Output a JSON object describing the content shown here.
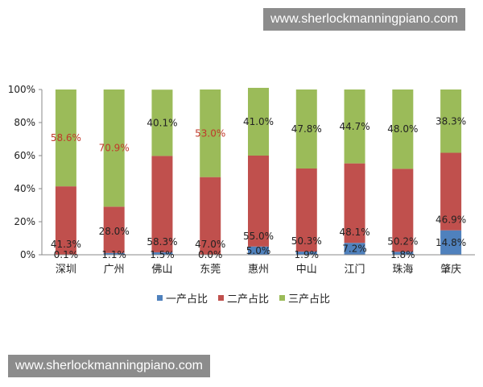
{
  "watermarks": {
    "top": "www.sherlockmanningpiano.com",
    "bottom": "www.sherlockmanningpiano.com"
  },
  "chart_data": {
    "type": "bar",
    "stacked": true,
    "categories": [
      "深圳",
      "广州",
      "佛山",
      "东莞",
      "惠州",
      "中山",
      "江门",
      "珠海",
      "肇庆"
    ],
    "series": [
      {
        "name": "一产占比",
        "color": "#4f81bd",
        "values": [
          0.1,
          1.1,
          1.5,
          0.0,
          5.0,
          1.9,
          7.2,
          1.8,
          14.8
        ],
        "labels": [
          "0.1%",
          "1.1%",
          "1.5%",
          "0.0%",
          "5.0%",
          "1.9%",
          "7.2%",
          "1.8%",
          "14.8%"
        ]
      },
      {
        "name": "二产占比",
        "color": "#c0504d",
        "values": [
          41.3,
          28.0,
          58.3,
          47.0,
          55.0,
          50.3,
          48.1,
          50.2,
          46.9
        ],
        "labels": [
          "41.3%",
          "28.0%",
          "58.3%",
          "47.0%",
          "55.0%",
          "50.3%",
          "48.1%",
          "50.2%",
          "46.9%"
        ]
      },
      {
        "name": "三产占比",
        "color": "#9bbb59",
        "values": [
          58.6,
          70.9,
          40.1,
          53.0,
          41.0,
          47.8,
          44.7,
          48.0,
          38.3
        ],
        "labels": [
          "58.6%",
          "70.9%",
          "40.1%",
          "53.0%",
          "41.0%",
          "47.8%",
          "44.7%",
          "48.0%",
          "38.3%"
        ]
      }
    ],
    "label_colors": {
      "default": "#222222",
      "highlight": "#c0392b"
    },
    "highlight_labels": [
      [
        2,
        0
      ],
      [
        2,
        1
      ],
      [
        2,
        3
      ]
    ],
    "yticks": [
      "0%",
      "20%",
      "40%",
      "60%",
      "80%",
      "100%"
    ],
    "ylim": [
      0,
      100
    ],
    "grid": false,
    "legend_position": "bottom"
  }
}
